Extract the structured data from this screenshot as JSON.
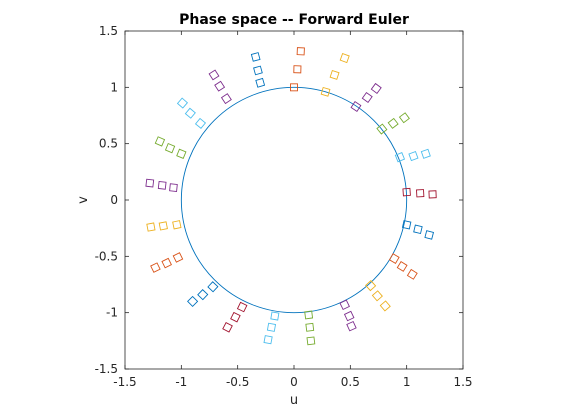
{
  "chart_data": {
    "type": "scatter",
    "title": "Phase space -- Forward Euler",
    "xlabel": "u",
    "ylabel": "v",
    "xlim": [
      -1.5,
      1.5
    ],
    "ylim": [
      -1.5,
      1.5
    ],
    "xticks": [
      -1.5,
      -1,
      -0.5,
      0,
      0.5,
      1,
      1.5
    ],
    "yticks": [
      -1.5,
      -1,
      -0.5,
      0,
      0.5,
      1,
      1.5
    ],
    "xtick_labels": [
      "-1.5",
      "-1",
      "-0.5",
      "0",
      "0.5",
      "1",
      "1.5"
    ],
    "ytick_labels": [
      "-1.5",
      "-1",
      "-0.5",
      "0",
      "0.5",
      "1",
      "1.5"
    ],
    "grid": false,
    "curve": {
      "shape": "circle",
      "center": [
        0,
        0
      ],
      "radius": 1.0,
      "color": "#0072bd"
    },
    "marker": "square",
    "series": [
      {
        "color": "#d95319",
        "points": [
          [
            0.0,
            1.0
          ],
          [
            0.03,
            1.16
          ],
          [
            0.06,
            1.32
          ]
        ]
      },
      {
        "color": "#edb120",
        "points": [
          [
            0.28,
            0.96
          ],
          [
            0.36,
            1.11
          ],
          [
            0.45,
            1.26
          ]
        ]
      },
      {
        "color": "#7e2f8e",
        "points": [
          [
            0.55,
            0.83
          ],
          [
            0.65,
            0.91
          ],
          [
            0.73,
            0.99
          ]
        ]
      },
      {
        "color": "#77ac30",
        "points": [
          [
            0.78,
            0.63
          ],
          [
            0.88,
            0.68
          ],
          [
            0.98,
            0.73
          ]
        ]
      },
      {
        "color": "#4dbeee",
        "points": [
          [
            0.94,
            0.38
          ],
          [
            1.06,
            0.39
          ],
          [
            1.17,
            0.41
          ]
        ]
      },
      {
        "color": "#a2142f",
        "points": [
          [
            1.0,
            0.07
          ],
          [
            1.12,
            0.06
          ],
          [
            1.23,
            0.05
          ]
        ]
      },
      {
        "color": "#0072bd",
        "points": [
          [
            1.0,
            -0.22
          ],
          [
            1.1,
            -0.26
          ],
          [
            1.2,
            -0.31
          ]
        ]
      },
      {
        "color": "#d95319",
        "points": [
          [
            0.89,
            -0.52
          ],
          [
            0.96,
            -0.59
          ],
          [
            1.05,
            -0.66
          ]
        ]
      },
      {
        "color": "#edb120",
        "points": [
          [
            0.68,
            -0.76
          ],
          [
            0.74,
            -0.85
          ],
          [
            0.81,
            -0.94
          ]
        ]
      },
      {
        "color": "#7e2f8e",
        "points": [
          [
            0.45,
            -0.93
          ],
          [
            0.49,
            -1.03
          ],
          [
            0.51,
            -1.12
          ]
        ]
      },
      {
        "color": "#77ac30",
        "points": [
          [
            0.13,
            -1.02
          ],
          [
            0.14,
            -1.13
          ],
          [
            0.15,
            -1.25
          ]
        ]
      },
      {
        "color": "#4dbeee",
        "points": [
          [
            -0.17,
            -1.03
          ],
          [
            -0.2,
            -1.13
          ],
          [
            -0.23,
            -1.24
          ]
        ]
      },
      {
        "color": "#a2142f",
        "points": [
          [
            -0.46,
            -0.95
          ],
          [
            -0.52,
            -1.04
          ],
          [
            -0.59,
            -1.13
          ]
        ]
      },
      {
        "color": "#0072bd",
        "points": [
          [
            -0.72,
            -0.77
          ],
          [
            -0.81,
            -0.84
          ],
          [
            -0.9,
            -0.9
          ]
        ]
      },
      {
        "color": "#d95319",
        "points": [
          [
            -1.03,
            -0.51
          ],
          [
            -1.13,
            -0.56
          ],
          [
            -1.23,
            -0.6
          ]
        ]
      },
      {
        "color": "#edb120",
        "points": [
          [
            -1.04,
            -0.22
          ],
          [
            -1.16,
            -0.23
          ],
          [
            -1.27,
            -0.24
          ]
        ]
      },
      {
        "color": "#7e2f8e",
        "points": [
          [
            -1.07,
            0.11
          ],
          [
            -1.17,
            0.13
          ],
          [
            -1.28,
            0.15
          ]
        ]
      },
      {
        "color": "#77ac30",
        "points": [
          [
            -1.0,
            0.41
          ],
          [
            -1.1,
            0.46
          ],
          [
            -1.19,
            0.52
          ]
        ]
      },
      {
        "color": "#4dbeee",
        "points": [
          [
            -0.83,
            0.68
          ],
          [
            -0.92,
            0.77
          ],
          [
            -0.99,
            0.86
          ]
        ]
      },
      {
        "color": "#7e2f8e",
        "points": [
          [
            -0.6,
            0.9
          ],
          [
            -0.66,
            1.01
          ],
          [
            -0.71,
            1.11
          ]
        ]
      },
      {
        "color": "#0072bd",
        "points": [
          [
            -0.3,
            1.04
          ],
          [
            -0.32,
            1.15
          ],
          [
            -0.34,
            1.27
          ]
        ]
      }
    ]
  }
}
